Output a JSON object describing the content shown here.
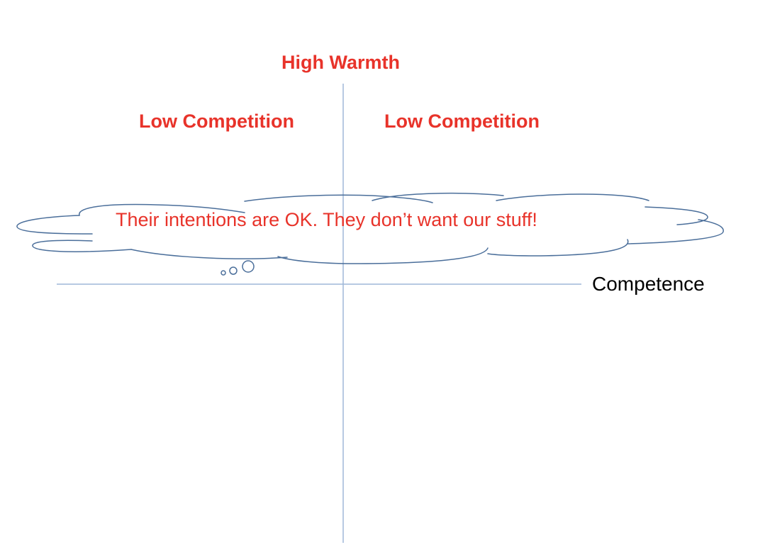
{
  "diagram": {
    "top_label": "High Warmth",
    "quadrant_top_left_label": "Low Competition",
    "quadrant_top_right_label": "Low Competition",
    "x_axis_label": "Competence",
    "thought_text": "Their intentions are OK. They don’t want our stuff!"
  },
  "colors": {
    "label_red": "#e8332a",
    "axis_blue": "#9fb7d8",
    "cloud_stroke": "#4a6e9a",
    "axis_label": "#000000"
  }
}
